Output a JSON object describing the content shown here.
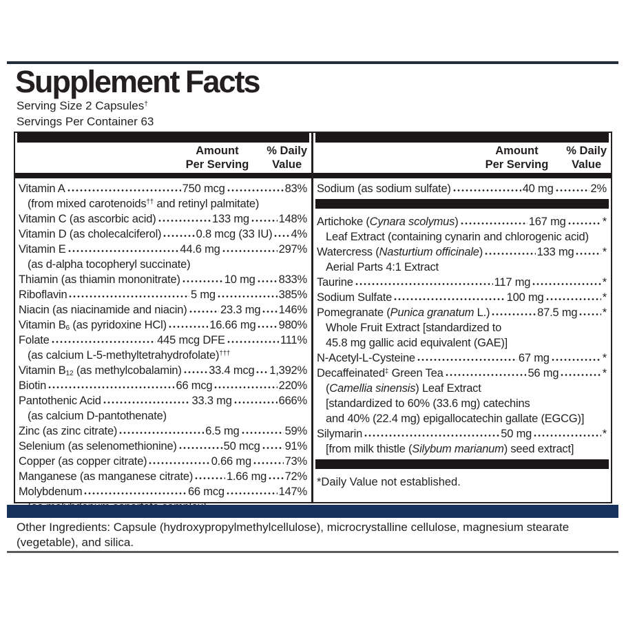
{
  "title": "Supplement Facts",
  "serving_size": [
    {
      "t": "Serving Size 2 Capsules"
    },
    {
      "t": "†",
      "sup": true
    }
  ],
  "servings_per_container": "Servings Per Container 63",
  "header": {
    "amount": "Amount",
    "per_serving": "Per Serving",
    "daily": "% Daily",
    "value": "Value"
  },
  "left_rows": [
    {
      "name": [
        {
          "t": "Vitamin A"
        }
      ],
      "amount": "750 mcg",
      "dv": "83%",
      "subs": [
        [
          {
            "t": "(from mixed carotenoids"
          },
          {
            "t": "††",
            "sup": true
          },
          {
            "t": " and retinyl palmitate)"
          }
        ]
      ]
    },
    {
      "name": [
        {
          "t": "Vitamin C (as ascorbic acid)"
        }
      ],
      "amount": "133 mg",
      "dv": "148%"
    },
    {
      "name": [
        {
          "t": "Vitamin D (as cholecalciferol)"
        }
      ],
      "amount": "0.8 mcg (33 IU)",
      "dv": "4%"
    },
    {
      "name": [
        {
          "t": "Vitamin E"
        }
      ],
      "amount": "44.6 mg",
      "dv": "297%",
      "subs": [
        [
          {
            "t": "(as d-alpha tocopheryl succinate)"
          }
        ]
      ]
    },
    {
      "name": [
        {
          "t": "Thiamin (as thiamin mononitrate)"
        }
      ],
      "amount": "10 mg",
      "dv": "833%"
    },
    {
      "name": [
        {
          "t": "Riboflavin"
        }
      ],
      "amount": "5 mg",
      "dv": "385%"
    },
    {
      "name": [
        {
          "t": "Niacin (as niacinamide and niacin)"
        }
      ],
      "amount": "23.3 mg",
      "dv": "146%"
    },
    {
      "name": [
        {
          "t": "Vitamin B"
        },
        {
          "t": "6",
          "sub": true
        },
        {
          "t": " (as pyridoxine HCl)"
        }
      ],
      "amount": "16.66 mg",
      "dv": "980%"
    },
    {
      "name": [
        {
          "t": "Folate"
        }
      ],
      "amount": "445 mcg DFE",
      "dv": "111%",
      "subs": [
        [
          {
            "t": "(as calcium L-5-methyltetrahydrofolate)"
          },
          {
            "t": "†††",
            "sup": true
          }
        ]
      ]
    },
    {
      "name": [
        {
          "t": "Vitamin B"
        },
        {
          "t": "12",
          "sub": true
        },
        {
          "t": " (as methylcobalamin)"
        }
      ],
      "amount": "33.4 mcg",
      "dv": "1,392%"
    },
    {
      "name": [
        {
          "t": "Biotin"
        }
      ],
      "amount": "66 mcg",
      "dv": "220%"
    },
    {
      "name": [
        {
          "t": "Pantothenic Acid"
        }
      ],
      "amount": "33.3 mg",
      "dv": "666%",
      "subs": [
        [
          {
            "t": "(as calcium D-pantothenate)"
          }
        ]
      ]
    },
    {
      "name": [
        {
          "t": "Zinc (as zinc citrate)"
        }
      ],
      "amount": "6.5 mg",
      "dv": "59%"
    },
    {
      "name": [
        {
          "t": "Selenium (as selenomethionine)"
        }
      ],
      "amount": "50 mcg",
      "dv": "91%"
    },
    {
      "name": [
        {
          "t": "Copper (as copper citrate)"
        }
      ],
      "amount": "0.66 mg",
      "dv": "73%"
    },
    {
      "name": [
        {
          "t": "Manganese (as manganese citrate)"
        }
      ],
      "amount": "1.66 mg",
      "dv": "72%"
    },
    {
      "name": [
        {
          "t": "Molybdenum"
        }
      ],
      "amount": "66 mcg",
      "dv": "147%",
      "subs": [
        [
          {
            "t": "(as molybdenum aspartate complex)"
          }
        ]
      ]
    }
  ],
  "right_top_rows": [
    {
      "name": [
        {
          "t": "Sodium (as sodium sulfate)"
        }
      ],
      "amount": "40 mg",
      "dv": "2%"
    }
  ],
  "right_rows": [
    {
      "name": [
        {
          "t": "Artichoke ("
        },
        {
          "t": "Cynara scolymus",
          "i": true
        },
        {
          "t": ")"
        }
      ],
      "amount": "167 mg",
      "dv": "*",
      "subs": [
        [
          {
            "t": "Leaf Extract (containing cynarin and chlorogenic acid)"
          }
        ]
      ]
    },
    {
      "name": [
        {
          "t": "Watercress ("
        },
        {
          "t": "Nasturtium officinale",
          "i": true
        },
        {
          "t": ")"
        }
      ],
      "amount": "133 mg",
      "dv": "*",
      "subs": [
        [
          {
            "t": "Aerial Parts 4:1 Extract"
          }
        ]
      ]
    },
    {
      "name": [
        {
          "t": "Taurine"
        }
      ],
      "amount": "117 mg",
      "dv": "*"
    },
    {
      "name": [
        {
          "t": "Sodium Sulfate"
        }
      ],
      "amount": "100 mg",
      "dv": "*"
    },
    {
      "name": [
        {
          "t": "Pomegranate ("
        },
        {
          "t": "Punica granatum",
          "i": true
        },
        {
          "t": " L.)"
        }
      ],
      "amount": "87.5 mg",
      "dv": "*",
      "subs": [
        [
          {
            "t": "Whole Fruit Extract [standardized to"
          }
        ],
        [
          {
            "t": "45.8 mg gallic acid equivalent (GAE)]"
          }
        ]
      ]
    },
    {
      "name": [
        {
          "t": "N-Acetyl-L-Cysteine"
        }
      ],
      "amount": "67 mg",
      "dv": "*"
    },
    {
      "name": [
        {
          "t": "Decaffeinated"
        },
        {
          "t": "‡",
          "sup": true
        },
        {
          "t": " Green Tea"
        }
      ],
      "amount": "56 mg",
      "dv": "*",
      "subs": [
        [
          {
            "t": "("
          },
          {
            "t": "Camellia sinensis",
            "i": true
          },
          {
            "t": ") Leaf Extract"
          }
        ],
        [
          {
            "t": "[standardized to 60% (33.6 mg) catechins"
          }
        ],
        [
          {
            "t": "and 40% (22.4 mg) epigallocatechin gallate (EGCG)]"
          }
        ]
      ]
    },
    {
      "name": [
        {
          "t": "Silymarin"
        }
      ],
      "amount": "50 mg",
      "dv": "*",
      "subs": [
        [
          {
            "t": "[from milk thistle ("
          },
          {
            "t": "Silybum marianum",
            "i": true
          },
          {
            "t": ") seed extract]"
          }
        ]
      ]
    }
  ],
  "footnote": "*Daily Value not established.",
  "other_ingredients": "Other Ingredients: Capsule (hydroxypropylmethylcellulose), microcrystalline cellulose, magnesium stearate (vegetable), and silica.",
  "colors": {
    "ink": "#231f20",
    "bar_black": "#1b1718",
    "bar_navy": "#16325c",
    "rule_top": "#232c3a",
    "rule_bottom": "#5b5b5b"
  }
}
